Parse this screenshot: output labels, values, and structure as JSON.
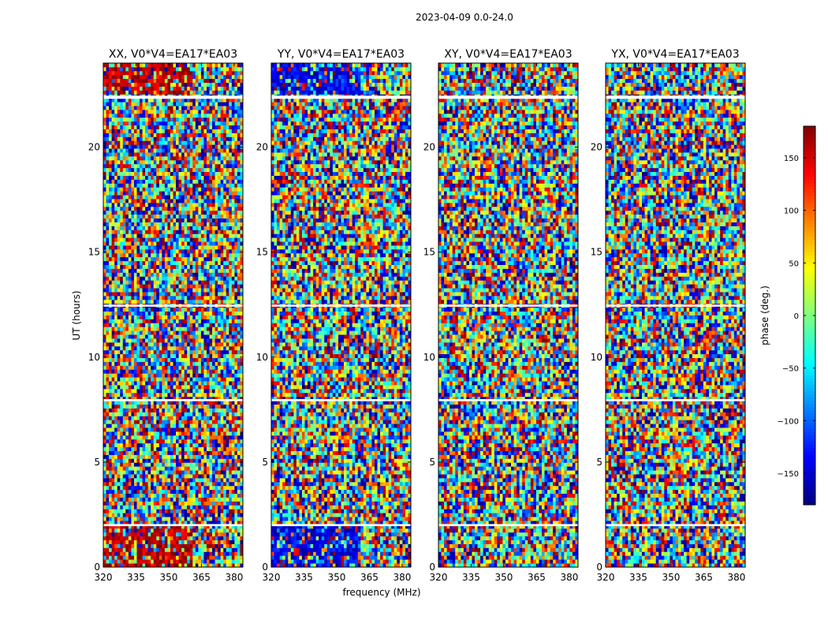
{
  "chart_data": {
    "type": "heatmap",
    "suptitle": "2023-04-09 0.0-24.0",
    "xlabel": "frequency (MHz)",
    "ylabel": "UT (hours)",
    "xlim": [
      320,
      384
    ],
    "ylim": [
      0,
      24
    ],
    "xticks": [
      320,
      335,
      350,
      365,
      380
    ],
    "yticks": [
      0,
      5,
      10,
      15,
      20
    ],
    "colormap": "jet",
    "panels": [
      {
        "title": "XX, V0*V4=EA17*EA03",
        "polarization": "XX",
        "dominant_phase_low_freq": 160
      },
      {
        "title": "YY, V0*V4=EA17*EA03",
        "polarization": "YY",
        "dominant_phase_low_freq": -140
      },
      {
        "title": "XY, V0*V4=EA17*EA03",
        "polarization": "XY",
        "dominant_phase_low_freq": null
      },
      {
        "title": "YX, V0*V4=EA17*EA03",
        "polarization": "YX",
        "dominant_phase_low_freq": null
      }
    ],
    "colorbar": {
      "label": "phase (deg.)",
      "range": [
        -180,
        180
      ],
      "ticks": [
        150,
        100,
        50,
        0,
        -50,
        -100,
        -150
      ],
      "tick_labels": [
        "150",
        "100",
        "50",
        "0",
        "−50",
        "−100",
        "−150"
      ]
    },
    "flagged_time_ranges_hours": [
      [
        1.95,
        2.05
      ],
      [
        22.3,
        22.45
      ],
      [
        12.4,
        12.5
      ],
      [
        7.9,
        8.0
      ]
    ]
  }
}
